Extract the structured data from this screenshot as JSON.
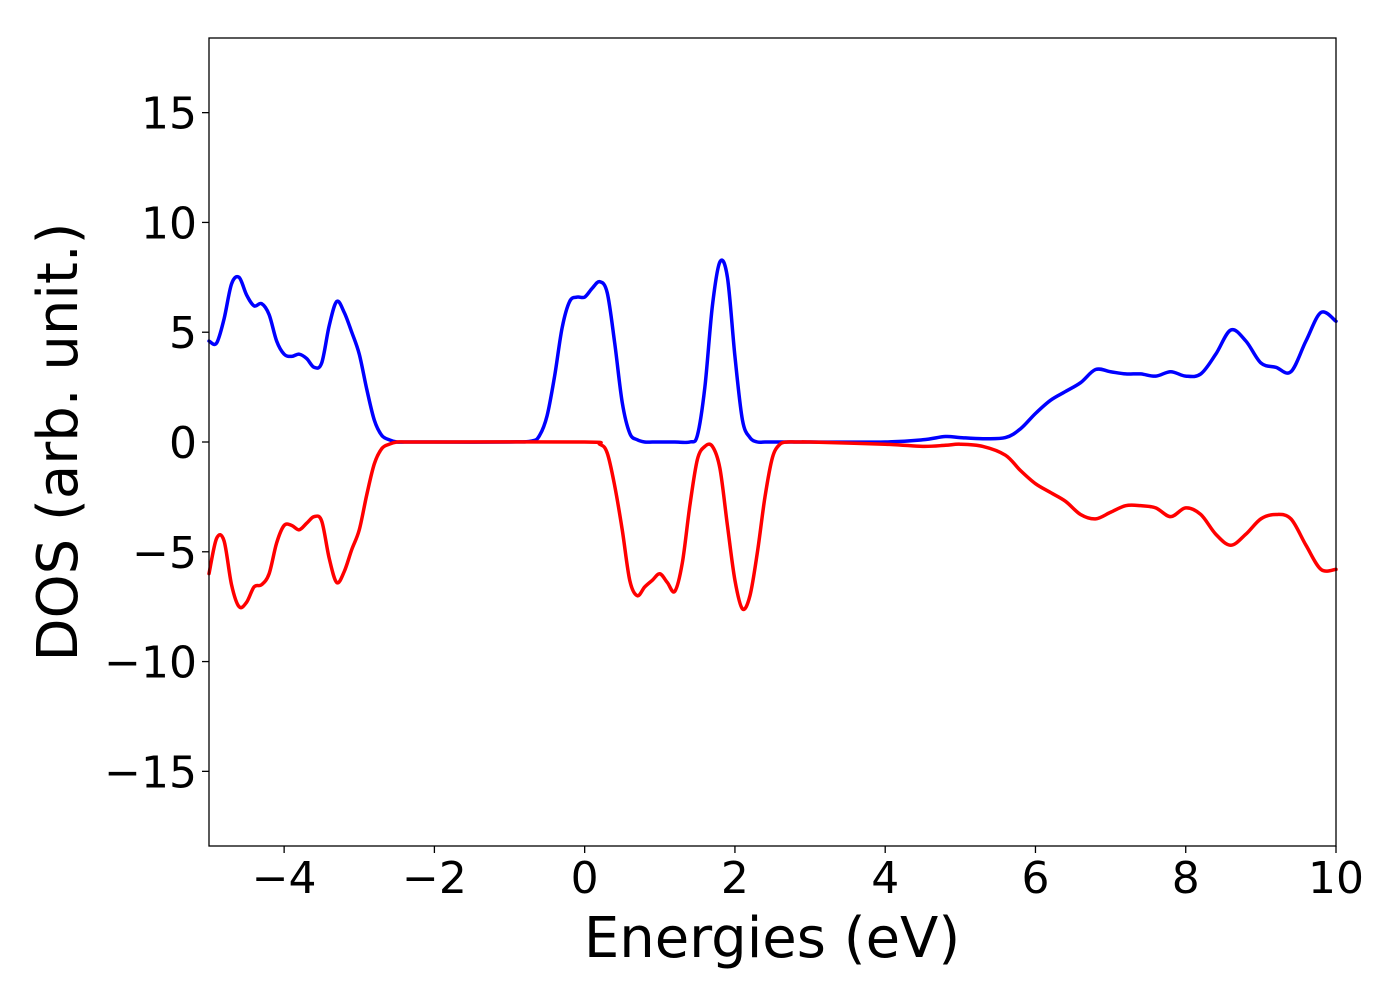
{
  "chart_data": {
    "type": "line",
    "xlabel": "Energies (eV)",
    "ylabel": "DOS (arb. unit.)",
    "xlim": [
      -5,
      10
    ],
    "ylim": [
      -18.4,
      18.4
    ],
    "xticks": [
      -4,
      -2,
      0,
      2,
      4,
      6,
      8,
      10
    ],
    "xtick_labels": [
      "−4",
      "−2",
      "0",
      "2",
      "4",
      "6",
      "8",
      "10"
    ],
    "yticks": [
      -15,
      -10,
      -5,
      0,
      5,
      10,
      15
    ],
    "ytick_labels": [
      "−15",
      "−10",
      "−5",
      "0",
      "5",
      "10",
      "15"
    ],
    "grid": false,
    "legend": "none",
    "series": [
      {
        "color": "#0000ff",
        "x": [
          -5.0,
          -4.9,
          -4.8,
          -4.7,
          -4.6,
          -4.5,
          -4.4,
          -4.3,
          -4.2,
          -4.1,
          -4.0,
          -3.9,
          -3.8,
          -3.7,
          -3.6,
          -3.5,
          -3.4,
          -3.3,
          -3.2,
          -3.1,
          -3.0,
          -2.9,
          -2.8,
          -2.7,
          -2.6,
          -2.5,
          -2.4,
          -2.3,
          -2.2,
          -2.0,
          -1.0,
          -0.7,
          -0.6,
          -0.5,
          -0.4,
          -0.3,
          -0.2,
          -0.1,
          0.0,
          0.1,
          0.2,
          0.3,
          0.4,
          0.5,
          0.6,
          0.7,
          0.8,
          0.9,
          1.0,
          1.2,
          1.4,
          1.5,
          1.6,
          1.7,
          1.8,
          1.9,
          2.0,
          2.1,
          2.2,
          2.3,
          2.4,
          2.5,
          2.6,
          2.8,
          3.0,
          4.0,
          4.5,
          4.8,
          5.0,
          5.3,
          5.6,
          5.8,
          6.0,
          6.2,
          6.4,
          6.6,
          6.8,
          7.0,
          7.2,
          7.4,
          7.6,
          7.8,
          8.0,
          8.2,
          8.4,
          8.6,
          8.8,
          9.0,
          9.2,
          9.4,
          9.6,
          9.8,
          10.0
        ],
        "values": [
          4.6,
          4.5,
          5.6,
          7.2,
          7.5,
          6.7,
          6.2,
          6.3,
          5.8,
          4.6,
          4.0,
          3.9,
          4.0,
          3.8,
          3.4,
          3.6,
          5.3,
          6.4,
          5.9,
          5.0,
          4.0,
          2.4,
          1.0,
          0.3,
          0.1,
          0.0,
          0.0,
          0.0,
          0.0,
          0.0,
          0.0,
          0.05,
          0.3,
          1.2,
          3.0,
          5.2,
          6.4,
          6.6,
          6.6,
          7.0,
          7.3,
          6.8,
          4.5,
          1.8,
          0.4,
          0.1,
          0.0,
          0.0,
          0.0,
          0.0,
          0.0,
          0.3,
          2.5,
          6.2,
          8.2,
          7.5,
          3.9,
          1.0,
          0.2,
          0.0,
          0.0,
          0.0,
          0.0,
          0.0,
          0.0,
          0.0,
          0.1,
          0.25,
          0.2,
          0.15,
          0.2,
          0.6,
          1.3,
          1.9,
          2.3,
          2.7,
          3.3,
          3.2,
          3.1,
          3.1,
          3.0,
          3.2,
          3.0,
          3.1,
          4.0,
          5.1,
          4.6,
          3.6,
          3.4,
          3.2,
          4.6,
          5.9,
          5.5
        ]
      },
      {
        "color": "#ff0000",
        "x": [
          -5.0,
          -4.9,
          -4.8,
          -4.7,
          -4.6,
          -4.5,
          -4.4,
          -4.3,
          -4.2,
          -4.1,
          -4.0,
          -3.9,
          -3.8,
          -3.7,
          -3.6,
          -3.5,
          -3.4,
          -3.3,
          -3.2,
          -3.1,
          -3.0,
          -2.9,
          -2.8,
          -2.7,
          -2.6,
          -2.5,
          -2.4,
          -2.3,
          -2.2,
          -2.0,
          0.0,
          0.2,
          0.3,
          0.4,
          0.5,
          0.6,
          0.7,
          0.8,
          0.9,
          1.0,
          1.1,
          1.2,
          1.3,
          1.4,
          1.5,
          1.6,
          1.7,
          1.8,
          1.9,
          2.0,
          2.1,
          2.2,
          2.3,
          2.4,
          2.5,
          2.6,
          2.7,
          2.8,
          2.9,
          3.0,
          4.0,
          4.5,
          4.8,
          5.0,
          5.3,
          5.6,
          5.8,
          6.0,
          6.2,
          6.4,
          6.6,
          6.8,
          7.0,
          7.2,
          7.4,
          7.6,
          7.8,
          8.0,
          8.2,
          8.4,
          8.6,
          8.8,
          9.0,
          9.2,
          9.4,
          9.6,
          9.8,
          10.0
        ],
        "values": [
          -6.0,
          -4.4,
          -4.5,
          -6.5,
          -7.5,
          -7.3,
          -6.6,
          -6.5,
          -6.0,
          -4.6,
          -3.8,
          -3.8,
          -4.0,
          -3.7,
          -3.4,
          -3.6,
          -5.3,
          -6.4,
          -5.9,
          -4.9,
          -4.0,
          -2.4,
          -1.0,
          -0.3,
          -0.1,
          0.0,
          0.0,
          0.0,
          0.0,
          0.0,
          0.0,
          -0.1,
          -0.5,
          -2.0,
          -4.0,
          -6.3,
          -7.0,
          -6.6,
          -6.3,
          -6.0,
          -6.4,
          -6.8,
          -5.5,
          -2.9,
          -0.8,
          -0.2,
          -0.2,
          -1.2,
          -3.8,
          -6.3,
          -7.6,
          -7.0,
          -5.0,
          -2.5,
          -0.7,
          -0.1,
          0.0,
          0.0,
          0.0,
          0.0,
          -0.1,
          -0.2,
          -0.15,
          -0.1,
          -0.2,
          -0.6,
          -1.3,
          -1.9,
          -2.3,
          -2.7,
          -3.3,
          -3.5,
          -3.2,
          -2.9,
          -2.9,
          -3.0,
          -3.4,
          -3.0,
          -3.3,
          -4.2,
          -4.7,
          -4.2,
          -3.5,
          -3.3,
          -3.5,
          -4.7,
          -5.8,
          -5.8
        ]
      }
    ]
  }
}
